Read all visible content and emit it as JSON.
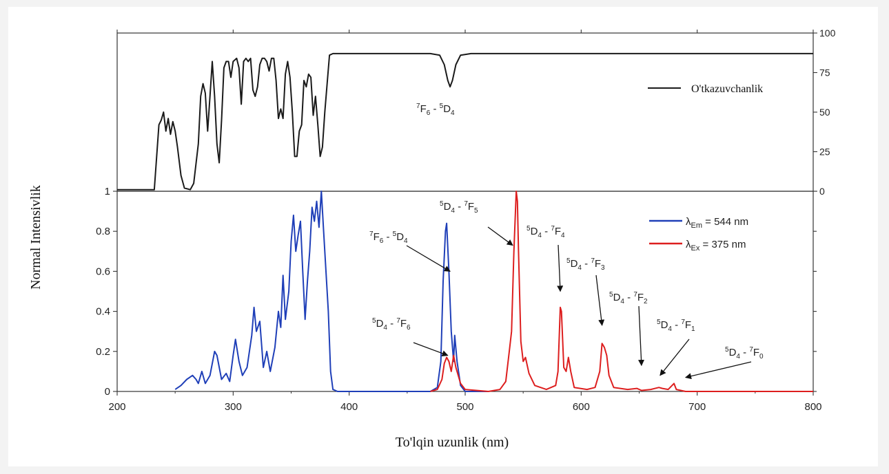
{
  "chart_data": [
    {
      "type": "line",
      "panel": "top",
      "x_range": [
        200,
        800
      ],
      "ylim": [
        0,
        100
      ],
      "y_axis_side": "right",
      "y_ticks": [
        "0",
        "25",
        "50",
        "75",
        "100"
      ],
      "legend": {
        "position": "top-right",
        "entries": [
          "O'tkazuvchanlik"
        ]
      },
      "series": [
        {
          "name": "O'tkazuvchanlik",
          "color": "#1a1a1a",
          "points": [
            [
              200,
              1
            ],
            [
              232,
              1
            ],
            [
              236,
              42
            ],
            [
              238,
              45
            ],
            [
              240,
              50
            ],
            [
              242,
              38
            ],
            [
              244,
              46
            ],
            [
              246,
              36
            ],
            [
              248,
              44
            ],
            [
              250,
              38
            ],
            [
              252,
              28
            ],
            [
              255,
              10
            ],
            [
              258,
              2
            ],
            [
              263,
              1
            ],
            [
              266,
              5
            ],
            [
              270,
              30
            ],
            [
              272,
              60
            ],
            [
              274,
              68
            ],
            [
              276,
              62
            ],
            [
              278,
              38
            ],
            [
              280,
              60
            ],
            [
              282,
              82
            ],
            [
              284,
              60
            ],
            [
              286,
              30
            ],
            [
              288,
              18
            ],
            [
              290,
              45
            ],
            [
              292,
              78
            ],
            [
              294,
              82
            ],
            [
              296,
              82
            ],
            [
              298,
              72
            ],
            [
              300,
              82
            ],
            [
              303,
              84
            ],
            [
              305,
              78
            ],
            [
              307,
              55
            ],
            [
              309,
              82
            ],
            [
              311,
              84
            ],
            [
              313,
              82
            ],
            [
              315,
              84
            ],
            [
              317,
              64
            ],
            [
              319,
              60
            ],
            [
              321,
              66
            ],
            [
              323,
              80
            ],
            [
              325,
              84
            ],
            [
              327,
              84
            ],
            [
              329,
              82
            ],
            [
              331,
              76
            ],
            [
              333,
              84
            ],
            [
              335,
              84
            ],
            [
              337,
              70
            ],
            [
              339,
              46
            ],
            [
              341,
              52
            ],
            [
              343,
              46
            ],
            [
              345,
              74
            ],
            [
              347,
              82
            ],
            [
              349,
              72
            ],
            [
              351,
              50
            ],
            [
              353,
              22
            ],
            [
              355,
              22
            ],
            [
              357,
              38
            ],
            [
              359,
              42
            ],
            [
              361,
              70
            ],
            [
              363,
              66
            ],
            [
              365,
              74
            ],
            [
              367,
              72
            ],
            [
              369,
              48
            ],
            [
              371,
              60
            ],
            [
              373,
              42
            ],
            [
              375,
              22
            ],
            [
              377,
              28
            ],
            [
              379,
              50
            ],
            [
              381,
              68
            ],
            [
              383,
              86
            ],
            [
              386,
              87
            ],
            [
              395,
              87
            ],
            [
              470,
              87
            ],
            [
              478,
              86
            ],
            [
              482,
              80
            ],
            [
              485,
              70
            ],
            [
              487,
              66
            ],
            [
              489,
              70
            ],
            [
              492,
              80
            ],
            [
              496,
              86
            ],
            [
              505,
              87
            ],
            [
              800,
              87
            ]
          ]
        }
      ]
    },
    {
      "type": "line",
      "panel": "bottom",
      "x_range": [
        200,
        800
      ],
      "ylim": [
        0,
        1
      ],
      "xlabel": "To'lqin uzunlik (nm)",
      "ylabel": "Normal Intensivlik",
      "x_ticks": [
        "200",
        "300",
        "400",
        "500",
        "600",
        "700",
        "800"
      ],
      "y_ticks": [
        "0",
        "0.2",
        "0.4",
        "0.6",
        "0.8",
        "1"
      ],
      "legend": {
        "position": "top-right",
        "entries": [
          {
            "symbol": "λ",
            "sub": "Em",
            "text": " = 544 nm"
          },
          {
            "symbol": "λ",
            "sub": "Ex",
            "text": " = 375 nm"
          }
        ]
      },
      "series": [
        {
          "name": "λEm = 544 nm",
          "color": "#1f3fb8",
          "points": [
            [
              250,
              0.01
            ],
            [
              255,
              0.03
            ],
            [
              260,
              0.06
            ],
            [
              265,
              0.08
            ],
            [
              268,
              0.06
            ],
            [
              270,
              0.04
            ],
            [
              273,
              0.1
            ],
            [
              276,
              0.04
            ],
            [
              280,
              0.08
            ],
            [
              284,
              0.2
            ],
            [
              286,
              0.18
            ],
            [
              290,
              0.06
            ],
            [
              294,
              0.09
            ],
            [
              297,
              0.05
            ],
            [
              300,
              0.18
            ],
            [
              302,
              0.26
            ],
            [
              305,
              0.15
            ],
            [
              308,
              0.08
            ],
            [
              312,
              0.12
            ],
            [
              316,
              0.28
            ],
            [
              318,
              0.42
            ],
            [
              320,
              0.3
            ],
            [
              323,
              0.35
            ],
            [
              326,
              0.12
            ],
            [
              329,
              0.2
            ],
            [
              332,
              0.1
            ],
            [
              336,
              0.22
            ],
            [
              339,
              0.4
            ],
            [
              341,
              0.32
            ],
            [
              343,
              0.58
            ],
            [
              345,
              0.36
            ],
            [
              348,
              0.5
            ],
            [
              350,
              0.75
            ],
            [
              352,
              0.88
            ],
            [
              354,
              0.7
            ],
            [
              356,
              0.78
            ],
            [
              358,
              0.85
            ],
            [
              360,
              0.6
            ],
            [
              362,
              0.36
            ],
            [
              364,
              0.55
            ],
            [
              366,
              0.7
            ],
            [
              368,
              0.92
            ],
            [
              370,
              0.85
            ],
            [
              372,
              0.95
            ],
            [
              374,
              0.82
            ],
            [
              376,
              1.0
            ],
            [
              378,
              0.8
            ],
            [
              380,
              0.6
            ],
            [
              382,
              0.4
            ],
            [
              384,
              0.1
            ],
            [
              386,
              0.01
            ],
            [
              390,
              0.0
            ],
            [
              470,
              0.0
            ],
            [
              476,
              0.02
            ],
            [
              479,
              0.15
            ],
            [
              481,
              0.55
            ],
            [
              483,
              0.8
            ],
            [
              484,
              0.84
            ],
            [
              486,
              0.6
            ],
            [
              488,
              0.3
            ],
            [
              490,
              0.15
            ],
            [
              491,
              0.28
            ],
            [
              493,
              0.15
            ],
            [
              496,
              0.03
            ],
            [
              500,
              0.0
            ],
            [
              520,
              0.0
            ]
          ]
        },
        {
          "name": "λEx = 375 nm",
          "color": "#dd1e1e",
          "points": [
            [
              470,
              0.0
            ],
            [
              476,
              0.01
            ],
            [
              480,
              0.06
            ],
            [
              482,
              0.14
            ],
            [
              484,
              0.17
            ],
            [
              486,
              0.15
            ],
            [
              488,
              0.1
            ],
            [
              490,
              0.18
            ],
            [
              492,
              0.12
            ],
            [
              496,
              0.04
            ],
            [
              500,
              0.01
            ],
            [
              520,
              0.0
            ],
            [
              530,
              0.01
            ],
            [
              535,
              0.05
            ],
            [
              538,
              0.2
            ],
            [
              540,
              0.3
            ],
            [
              542,
              0.7
            ],
            [
              544,
              1.0
            ],
            [
              545,
              0.95
            ],
            [
              546,
              0.7
            ],
            [
              548,
              0.25
            ],
            [
              550,
              0.15
            ],
            [
              552,
              0.17
            ],
            [
              555,
              0.09
            ],
            [
              560,
              0.03
            ],
            [
              570,
              0.01
            ],
            [
              578,
              0.03
            ],
            [
              580,
              0.1
            ],
            [
              582,
              0.42
            ],
            [
              583,
              0.4
            ],
            [
              585,
              0.12
            ],
            [
              587,
              0.1
            ],
            [
              589,
              0.17
            ],
            [
              591,
              0.1
            ],
            [
              594,
              0.02
            ],
            [
              605,
              0.01
            ],
            [
              612,
              0.02
            ],
            [
              616,
              0.1
            ],
            [
              618,
              0.24
            ],
            [
              620,
              0.22
            ],
            [
              622,
              0.18
            ],
            [
              624,
              0.08
            ],
            [
              628,
              0.02
            ],
            [
              640,
              0.01
            ],
            [
              648,
              0.015
            ],
            [
              652,
              0.005
            ],
            [
              660,
              0.01
            ],
            [
              667,
              0.02
            ],
            [
              670,
              0.015
            ],
            [
              675,
              0.01
            ],
            [
              680,
              0.04
            ],
            [
              682,
              0.01
            ],
            [
              690,
              0.0
            ],
            [
              800,
              0.0
            ]
          ]
        }
      ],
      "annotations": [
        {
          "level": "7",
          "term": "F",
          "sub": "6",
          "level2": "5",
          "term2": "D",
          "sub2": "4",
          "at": [
            487,
            0.6
          ]
        },
        {
          "level": "5",
          "term": "D",
          "sub": "4",
          "level2": "7",
          "term2": "F",
          "sub2": "5",
          "at": [
            541,
            0.73
          ]
        },
        {
          "level": "5",
          "term": "D",
          "sub": "4",
          "level2": "7",
          "term2": "F",
          "sub2": "4",
          "at": [
            582,
            0.5
          ]
        },
        {
          "level": "5",
          "term": "D",
          "sub": "4",
          "level2": "7",
          "term2": "F",
          "sub2": "3",
          "at": [
            618,
            0.33
          ]
        },
        {
          "level": "5",
          "term": "D",
          "sub": "4",
          "level2": "7",
          "term2": "F",
          "sub2": "2",
          "at": [
            652,
            0.13
          ]
        },
        {
          "level": "5",
          "term": "D",
          "sub": "4",
          "level2": "7",
          "term2": "F",
          "sub2": "6",
          "at": [
            485,
            0.18
          ]
        },
        {
          "level": "5",
          "term": "D",
          "sub": "4",
          "level2": "7",
          "term2": "F",
          "sub2": "1",
          "at": [
            668,
            0.08
          ]
        },
        {
          "level": "5",
          "term": "D",
          "sub": "4",
          "level2": "7",
          "term2": "F",
          "sub2": "0",
          "at": [
            690,
            0.07
          ]
        }
      ],
      "top_annotation": {
        "level": "7",
        "term": "F",
        "sub": "6",
        "level2": "5",
        "term2": "D",
        "sub2": "4"
      }
    }
  ]
}
